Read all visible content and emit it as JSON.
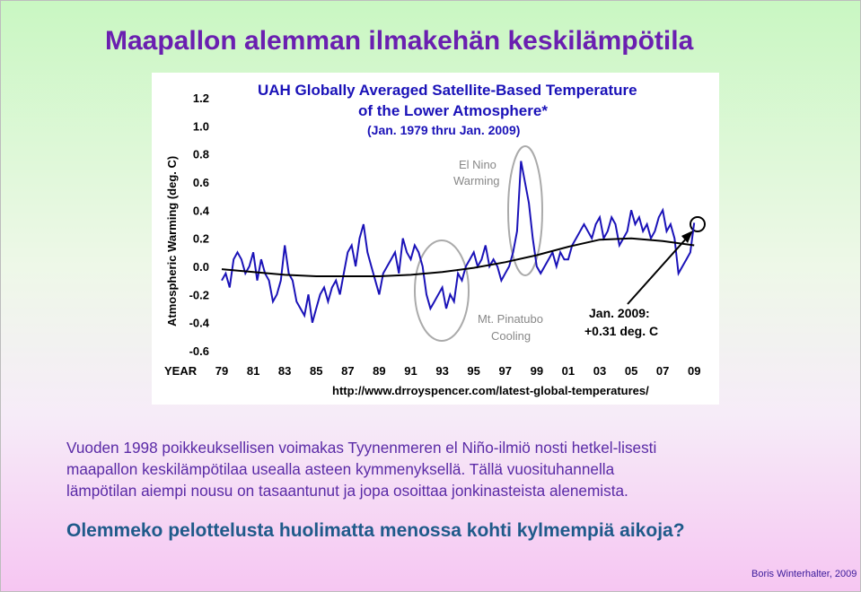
{
  "slide": {
    "title": "Maapallon alemman ilmakehän keskilämpötila",
    "paragraph_lines": [
      "Vuoden 1998 poikkeuksellisen voimakas Tyynenmeren el Niño-ilmiö nosti hetkel-lisesti",
      "maapallon keskilämpötilaa usealla asteen kymmenyksellä. Tällä vuosituhannella",
      "lämpötilan aiempi nousu on tasaantunut ja jopa osoittaa jonkinasteista alenemista."
    ],
    "question": "Olemmeko pelottelusta huolimatta menossa kohti kylmempiä aikoja?",
    "credit": "Boris Winterhalter, 2009"
  },
  "colors": {
    "title": "#6a1fb0",
    "chart_title": "#1a12b8",
    "series": "#1a12b8",
    "trend": "#000000",
    "circles": "#aaaaaa"
  },
  "chart_data": {
    "type": "line",
    "title_lines": [
      "UAH Globally Averaged Satellite-Based Temperature",
      "of the Lower Atmosphere*"
    ],
    "subtitle": "(Jan. 1979 thru Jan. 2009)",
    "ylabel": "Atmospheric Warming (deg. C)",
    "xlabel": "YEAR",
    "ylim": [
      -0.6,
      1.2
    ],
    "yticks": [
      1.2,
      1.0,
      0.8,
      0.6,
      0.4,
      0.2,
      0.0,
      -0.2,
      -0.4,
      -0.6
    ],
    "ytick_labels": [
      "1.2",
      "1.0",
      "0.8",
      "0.6",
      "0.4",
      "0.2",
      "0.0",
      "-0.2",
      "-0.4",
      "-0.6"
    ],
    "xlim": [
      1979,
      2009.1
    ],
    "xticks": [
      1979,
      1981,
      1983,
      1985,
      1987,
      1989,
      1991,
      1993,
      1995,
      1997,
      1999,
      2001,
      2003,
      2005,
      2007,
      2009
    ],
    "xtick_labels": [
      "79",
      "81",
      "83",
      "85",
      "87",
      "89",
      "91",
      "93",
      "95",
      "97",
      "99",
      "01",
      "03",
      "05",
      "07",
      "09"
    ],
    "source_url": "http://www.drroyspencer.com/latest-global-temperatures/",
    "series": [
      {
        "style": "monthly",
        "x": [
          1979.0,
          1979.25,
          1979.5,
          1979.75,
          1980.0,
          1980.25,
          1980.5,
          1980.75,
          1981.0,
          1981.25,
          1981.5,
          1981.75,
          1982.0,
          1982.25,
          1982.5,
          1982.75,
          1983.0,
          1983.25,
          1983.5,
          1983.75,
          1984.0,
          1984.25,
          1984.5,
          1984.75,
          1985.0,
          1985.25,
          1985.5,
          1985.75,
          1986.0,
          1986.25,
          1986.5,
          1986.75,
          1987.0,
          1987.25,
          1987.5,
          1987.75,
          1988.0,
          1988.25,
          1988.5,
          1988.75,
          1989.0,
          1989.25,
          1989.5,
          1989.75,
          1990.0,
          1990.25,
          1990.5,
          1990.75,
          1991.0,
          1991.25,
          1991.5,
          1991.75,
          1992.0,
          1992.25,
          1992.5,
          1992.75,
          1993.0,
          1993.25,
          1993.5,
          1993.75,
          1994.0,
          1994.25,
          1994.5,
          1994.75,
          1995.0,
          1995.25,
          1995.5,
          1995.75,
          1996.0,
          1996.25,
          1996.5,
          1996.75,
          1997.0,
          1997.25,
          1997.5,
          1997.75,
          1998.0,
          1998.25,
          1998.5,
          1998.75,
          1999.0,
          1999.25,
          1999.5,
          1999.75,
          2000.0,
          2000.25,
          2000.5,
          2000.75,
          2001.0,
          2001.25,
          2001.5,
          2001.75,
          2002.0,
          2002.25,
          2002.5,
          2002.75,
          2003.0,
          2003.25,
          2003.5,
          2003.75,
          2004.0,
          2004.25,
          2004.5,
          2004.75,
          2005.0,
          2005.25,
          2005.5,
          2005.75,
          2006.0,
          2006.25,
          2006.5,
          2006.75,
          2007.0,
          2007.25,
          2007.5,
          2007.75,
          2008.0,
          2008.25,
          2008.5,
          2008.75,
          2009.0
        ],
        "values": [
          -0.1,
          -0.05,
          -0.15,
          0.05,
          0.1,
          0.05,
          -0.05,
          0.0,
          0.1,
          -0.1,
          0.05,
          -0.05,
          -0.1,
          -0.25,
          -0.2,
          -0.1,
          0.15,
          -0.05,
          -0.1,
          -0.25,
          -0.3,
          -0.35,
          -0.2,
          -0.4,
          -0.3,
          -0.2,
          -0.15,
          -0.25,
          -0.15,
          -0.1,
          -0.2,
          -0.05,
          0.1,
          0.15,
          0.0,
          0.2,
          0.3,
          0.1,
          0.0,
          -0.1,
          -0.2,
          -0.05,
          0.0,
          0.05,
          0.1,
          -0.05,
          0.2,
          0.1,
          0.05,
          0.15,
          0.1,
          0.0,
          -0.2,
          -0.3,
          -0.25,
          -0.2,
          -0.15,
          -0.3,
          -0.2,
          -0.25,
          -0.05,
          -0.1,
          0.0,
          0.05,
          0.1,
          0.0,
          0.05,
          0.15,
          0.0,
          0.05,
          0.0,
          -0.1,
          -0.05,
          0.0,
          0.1,
          0.25,
          0.75,
          0.6,
          0.45,
          0.2,
          0.0,
          -0.05,
          0.0,
          0.05,
          0.1,
          0.0,
          0.1,
          0.05,
          0.05,
          0.15,
          0.2,
          0.25,
          0.3,
          0.25,
          0.2,
          0.3,
          0.35,
          0.2,
          0.25,
          0.35,
          0.3,
          0.15,
          0.2,
          0.25,
          0.4,
          0.3,
          0.35,
          0.25,
          0.3,
          0.2,
          0.25,
          0.35,
          0.4,
          0.25,
          0.3,
          0.2,
          -0.05,
          0.0,
          0.05,
          0.1,
          0.31
        ]
      },
      {
        "style": "trend",
        "x": [
          1979,
          1981,
          1983,
          1985,
          1987,
          1989,
          1991,
          1993,
          1995,
          1997,
          1999,
          2001,
          2003,
          2005,
          2007,
          2009
        ],
        "values": [
          -0.02,
          -0.04,
          -0.06,
          -0.07,
          -0.07,
          -0.07,
          -0.06,
          -0.04,
          -0.01,
          0.03,
          0.08,
          0.14,
          0.19,
          0.2,
          0.18,
          0.15
        ]
      }
    ],
    "annotations": {
      "el_nino": [
        "El Nino",
        "Warming"
      ],
      "pinatubo": [
        "Mt. Pinatubo",
        "Cooling"
      ],
      "jan2009": [
        "Jan. 2009:",
        "+0.31 deg. C"
      ]
    }
  }
}
